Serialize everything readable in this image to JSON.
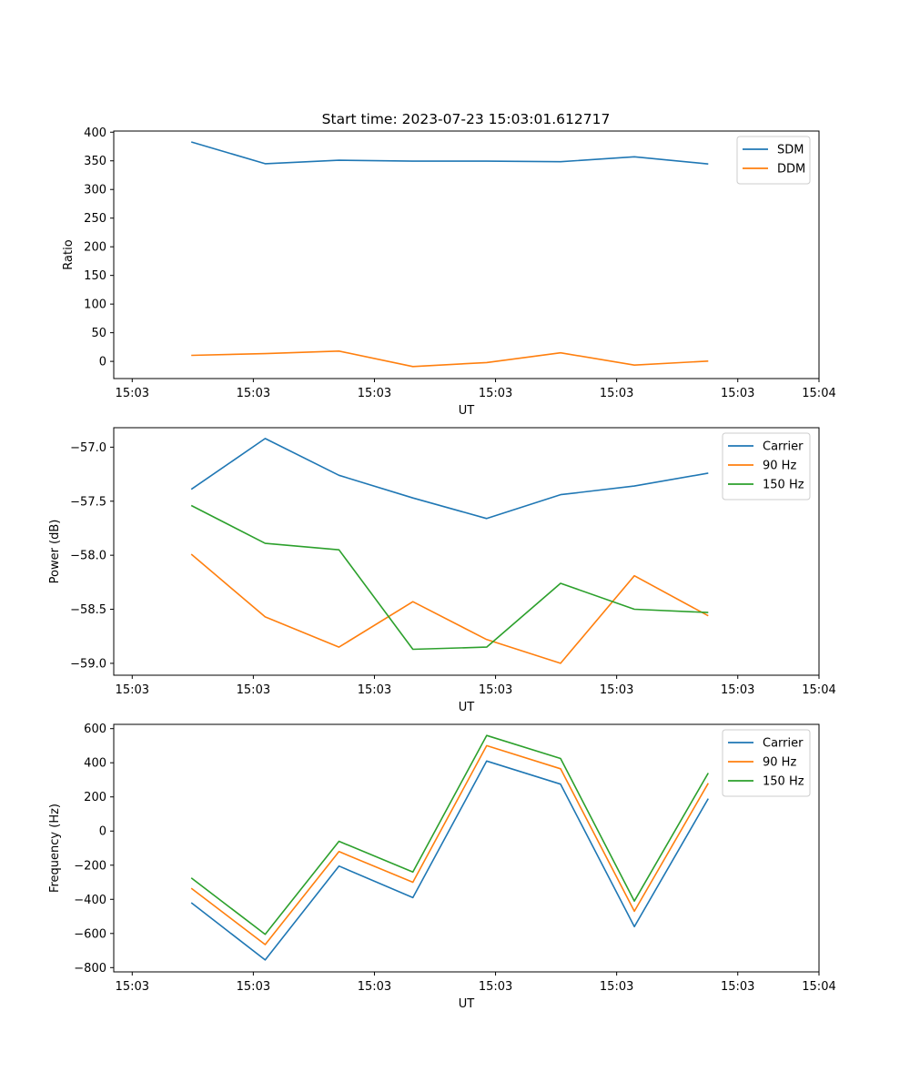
{
  "figure_title": "Start time: 2023-07-23 15:03:01.612717",
  "chart_data": [
    {
      "type": "line",
      "ylabel": "Ratio",
      "xlabel": "UT",
      "xlim": [
        -0.25,
        9.3
      ],
      "ylim": [
        -30,
        402
      ],
      "x_ticks": [
        {
          "value": 0,
          "label": "15:03"
        },
        {
          "value": 1.64,
          "label": "15:03"
        },
        {
          "value": 3.28,
          "label": "15:03"
        },
        {
          "value": 4.92,
          "label": "15:03"
        },
        {
          "value": 6.56,
          "label": "15:03"
        },
        {
          "value": 8.2,
          "label": "15:03"
        },
        {
          "value": 9.3,
          "label": "15:04"
        }
      ],
      "y_ticks": [
        0,
        50,
        100,
        150,
        200,
        250,
        300,
        350,
        400
      ],
      "y_tick_labels": [
        "0",
        "50",
        "100",
        "150",
        "200",
        "250",
        "300",
        "350",
        "400"
      ],
      "legend": "top-right",
      "series": [
        {
          "name": "SDM",
          "color": "#1f77b4",
          "x": [
            0.8,
            1.8,
            2.8,
            3.8,
            4.8,
            5.8,
            6.8,
            7.8
          ],
          "values": [
            383,
            345,
            351,
            349.5,
            349.5,
            348.5,
            357,
            344.5
          ]
        },
        {
          "name": "DDM",
          "color": "#ff7f0e",
          "x": [
            0.8,
            1.8,
            2.8,
            3.8,
            4.8,
            5.8,
            6.8,
            7.8
          ],
          "values": [
            10.5,
            13.5,
            18,
            -9,
            -2,
            15,
            -6.5,
            0.5
          ]
        }
      ]
    },
    {
      "type": "line",
      "ylabel": "Power (dB)",
      "xlabel": "UT",
      "xlim": [
        -0.25,
        9.3
      ],
      "ylim": [
        -59.11,
        -56.82
      ],
      "x_ticks": [
        {
          "value": 0,
          "label": "15:03"
        },
        {
          "value": 1.64,
          "label": "15:03"
        },
        {
          "value": 3.28,
          "label": "15:03"
        },
        {
          "value": 4.92,
          "label": "15:03"
        },
        {
          "value": 6.56,
          "label": "15:03"
        },
        {
          "value": 8.2,
          "label": "15:03"
        },
        {
          "value": 9.3,
          "label": "15:04"
        }
      ],
      "y_ticks": [
        -59.0,
        -58.5,
        -58.0,
        -57.5,
        -57.0
      ],
      "y_tick_labels": [
        "−59.0",
        "−58.5",
        "−58.0",
        "−57.5",
        "−57.0"
      ],
      "legend": "top-right",
      "series": [
        {
          "name": "Carrier",
          "color": "#1f77b4",
          "x": [
            0.8,
            1.8,
            2.8,
            3.8,
            4.8,
            5.8,
            6.8,
            7.8
          ],
          "values": [
            -57.39,
            -56.92,
            -57.26,
            -57.47,
            -57.66,
            -57.44,
            -57.36,
            -57.24
          ]
        },
        {
          "name": "90 Hz",
          "color": "#ff7f0e",
          "x": [
            0.8,
            1.8,
            2.8,
            3.8,
            4.8,
            5.8,
            6.8,
            7.8
          ],
          "values": [
            -57.99,
            -58.57,
            -58.85,
            -58.43,
            -58.78,
            -59.0,
            -58.19,
            -58.56
          ]
        },
        {
          "name": "150 Hz",
          "color": "#2ca02c",
          "x": [
            0.8,
            1.8,
            2.8,
            3.8,
            4.8,
            5.8,
            6.8,
            7.8
          ],
          "values": [
            -57.54,
            -57.89,
            -57.95,
            -58.87,
            -58.85,
            -58.26,
            -58.5,
            -58.53
          ]
        }
      ]
    },
    {
      "type": "line",
      "ylabel": "Frequency (Hz)",
      "xlabel": "UT",
      "xlim": [
        -0.25,
        9.3
      ],
      "ylim": [
        -825,
        625
      ],
      "x_ticks": [
        {
          "value": 0,
          "label": "15:03"
        },
        {
          "value": 1.64,
          "label": "15:03"
        },
        {
          "value": 3.28,
          "label": "15:03"
        },
        {
          "value": 4.92,
          "label": "15:03"
        },
        {
          "value": 6.56,
          "label": "15:03"
        },
        {
          "value": 8.2,
          "label": "15:03"
        },
        {
          "value": 9.3,
          "label": "15:04"
        }
      ],
      "y_ticks": [
        -800,
        -600,
        -400,
        -200,
        0,
        200,
        400,
        600
      ],
      "y_tick_labels": [
        "−800",
        "−600",
        "−400",
        "−200",
        "0",
        "200",
        "400",
        "600"
      ],
      "legend": "top-right",
      "series": [
        {
          "name": "Carrier",
          "color": "#1f77b4",
          "x": [
            0.8,
            1.8,
            2.8,
            3.8,
            4.8,
            5.8,
            6.8,
            7.8
          ],
          "values": [
            -420,
            -755,
            -205,
            -390,
            410,
            275,
            -560,
            190
          ]
        },
        {
          "name": "90 Hz",
          "color": "#ff7f0e",
          "x": [
            0.8,
            1.8,
            2.8,
            3.8,
            4.8,
            5.8,
            6.8,
            7.8
          ],
          "values": [
            -335,
            -665,
            -120,
            -300,
            500,
            365,
            -470,
            280
          ]
        },
        {
          "name": "150 Hz",
          "color": "#2ca02c",
          "x": [
            0.8,
            1.8,
            2.8,
            3.8,
            4.8,
            5.8,
            6.8,
            7.8
          ],
          "values": [
            -275,
            -605,
            -60,
            -240,
            560,
            425,
            -410,
            340
          ]
        }
      ]
    }
  ]
}
